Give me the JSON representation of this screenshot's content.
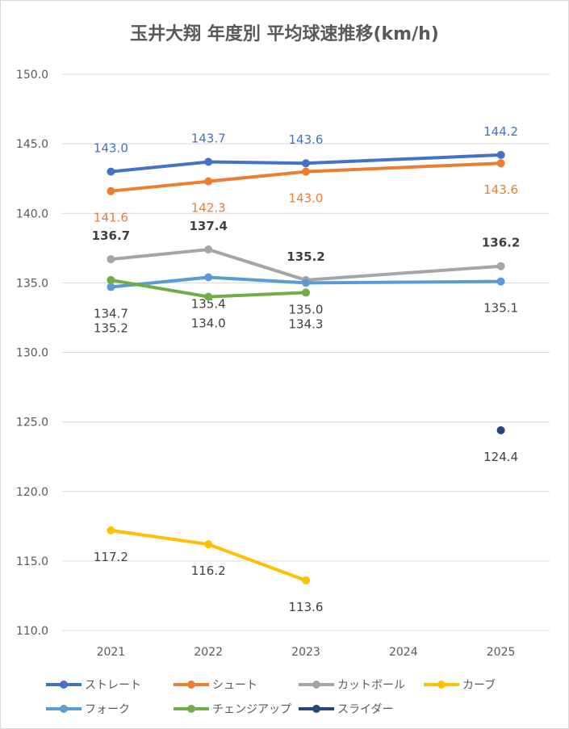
{
  "chart_data": {
    "type": "line",
    "title": "玉井大翔 年度別 平均球速推移(km/h)",
    "categories": [
      "2021",
      "2022",
      "2023",
      "2024",
      "2025"
    ],
    "ylim": [
      110,
      150
    ],
    "yticks": [
      "110.0",
      "115.0",
      "120.0",
      "125.0",
      "130.0",
      "135.0",
      "140.0",
      "145.0",
      "150.0"
    ],
    "grid": true,
    "legend_position": "bottom",
    "series": [
      {
        "name": "ストレート",
        "color": "#4472C4",
        "label_color": "#4472C4",
        "label_pos": "above",
        "label_bold": false,
        "values": [
          143.0,
          143.7,
          143.6,
          null,
          144.2
        ]
      },
      {
        "name": "シュート",
        "color": "#ED7D31",
        "label_color": "#ED7D31",
        "label_pos": "below",
        "label_bold": false,
        "values": [
          141.6,
          142.3,
          143.0,
          null,
          143.6
        ]
      },
      {
        "name": "カットボール",
        "color": "#A5A5A5",
        "label_color": "#404040",
        "label_pos": "above",
        "label_bold": true,
        "values": [
          136.7,
          137.4,
          135.2,
          null,
          136.2
        ]
      },
      {
        "name": "カーブ",
        "color": "#FFC000",
        "label_color": "#404040",
        "label_pos": "below",
        "label_bold": false,
        "values": [
          117.2,
          116.2,
          113.6,
          null,
          null
        ]
      },
      {
        "name": "フォーク",
        "color": "#5B9BD5",
        "label_color": "#404040",
        "label_pos": "below",
        "label_bold": false,
        "values": [
          134.7,
          135.4,
          135.0,
          null,
          135.1
        ]
      },
      {
        "name": "チェンジアップ",
        "color": "#70AD47",
        "label_color": "#404040",
        "label_pos": "below",
        "label_bold": false,
        "values": [
          135.2,
          134.0,
          134.3,
          null,
          null
        ]
      },
      {
        "name": "スライダー",
        "color": "#264478",
        "label_color": "#404040",
        "label_pos": "below",
        "label_bold": false,
        "values": [
          null,
          null,
          null,
          null,
          124.4
        ]
      }
    ]
  }
}
